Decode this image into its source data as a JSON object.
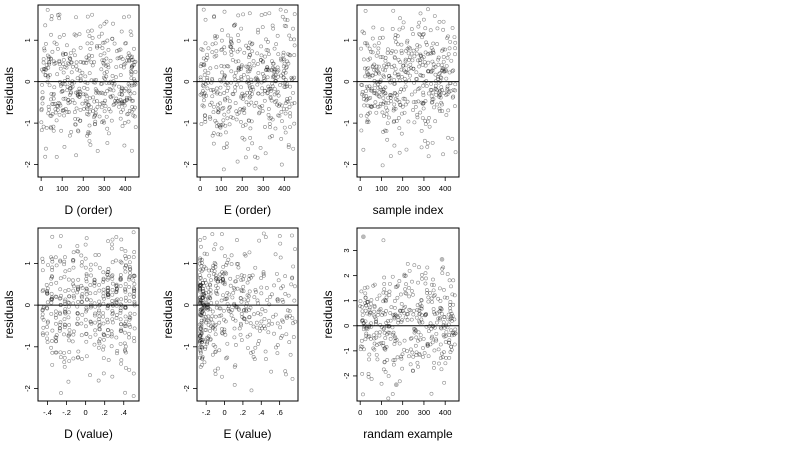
{
  "chart_data": [
    {
      "type": "scatter",
      "xlabel": "D (order)",
      "ylabel": "residuals",
      "xlim": [
        -15,
        465
      ],
      "ylim": [
        -2.3,
        1.85
      ],
      "xticks": [
        0,
        100,
        200,
        300,
        400
      ],
      "yticks": [
        -2,
        -1,
        0,
        1
      ],
      "hline": 0,
      "seed": 11,
      "n": 450,
      "sd": 0.72,
      "center": 0.0,
      "x_mode": "index",
      "x_range": [
        0,
        450
      ]
    },
    {
      "type": "scatter",
      "xlabel": "E (order)",
      "ylabel": "residuals",
      "xlim": [
        -15,
        465
      ],
      "ylim": [
        -2.3,
        1.85
      ],
      "xticks": [
        0,
        100,
        200,
        300,
        400
      ],
      "yticks": [
        -2,
        -1,
        0,
        1
      ],
      "hline": 0,
      "seed": 23,
      "n": 450,
      "sd": 0.72,
      "center": 0.0,
      "x_mode": "index",
      "x_range": [
        0,
        450
      ]
    },
    {
      "type": "scatter",
      "xlabel": "sample index",
      "ylabel": "residuals",
      "xlim": [
        -15,
        465
      ],
      "ylim": [
        -2.3,
        1.85
      ],
      "xticks": [
        0,
        100,
        200,
        300,
        400
      ],
      "yticks": [
        -2,
        -1,
        0,
        1
      ],
      "hline": 0,
      "seed": 37,
      "n": 450,
      "sd": 0.72,
      "center": 0.0,
      "x_mode": "index",
      "x_range": [
        0,
        450
      ]
    },
    {
      "type": "scatter",
      "xlabel": "D (value)",
      "ylabel": "residuals",
      "xlim": [
        -0.5,
        0.56
      ],
      "ylim": [
        -2.3,
        1.85
      ],
      "xticks": [
        -0.4,
        -0.2,
        0.0,
        0.2,
        0.4
      ],
      "yticks": [
        -2,
        -1,
        0,
        1
      ],
      "hline": 0,
      "seed": 41,
      "n": 450,
      "sd": 0.72,
      "center": 0.0,
      "x_mode": "banded",
      "x_range": [
        -0.47,
        0.53
      ]
    },
    {
      "type": "scatter",
      "xlabel": "E (value)",
      "ylabel": "residuals",
      "xlim": [
        -0.3,
        0.8
      ],
      "ylim": [
        -2.3,
        1.85
      ],
      "xticks": [
        -0.2,
        0.0,
        0.2,
        0.4,
        0.6
      ],
      "yticks": [
        -2,
        -1,
        0,
        1
      ],
      "hline": 0,
      "seed": 53,
      "n": 450,
      "sd": 0.72,
      "center": 0.0,
      "x_mode": "skewed",
      "x_range": [
        -0.27,
        0.77
      ]
    },
    {
      "type": "scatter",
      "xlabel": "randam example",
      "ylabel": "residuals",
      "xlim": [
        -15,
        465
      ],
      "ylim": [
        -3.0,
        3.9
      ],
      "xticks": [
        0,
        100,
        200,
        300,
        400
      ],
      "yticks": [
        -2,
        -1,
        0,
        1,
        2,
        3
      ],
      "hline": 0,
      "seed": 67,
      "n": 400,
      "sd": 1.0,
      "center": 0.0,
      "x_mode": "index",
      "x_range": [
        0,
        450
      ],
      "highlight": [
        {
          "x": 15,
          "y": 3.55
        },
        {
          "x": 385,
          "y": 2.65
        },
        {
          "x": 170,
          "y": -2.35
        }
      ]
    }
  ]
}
